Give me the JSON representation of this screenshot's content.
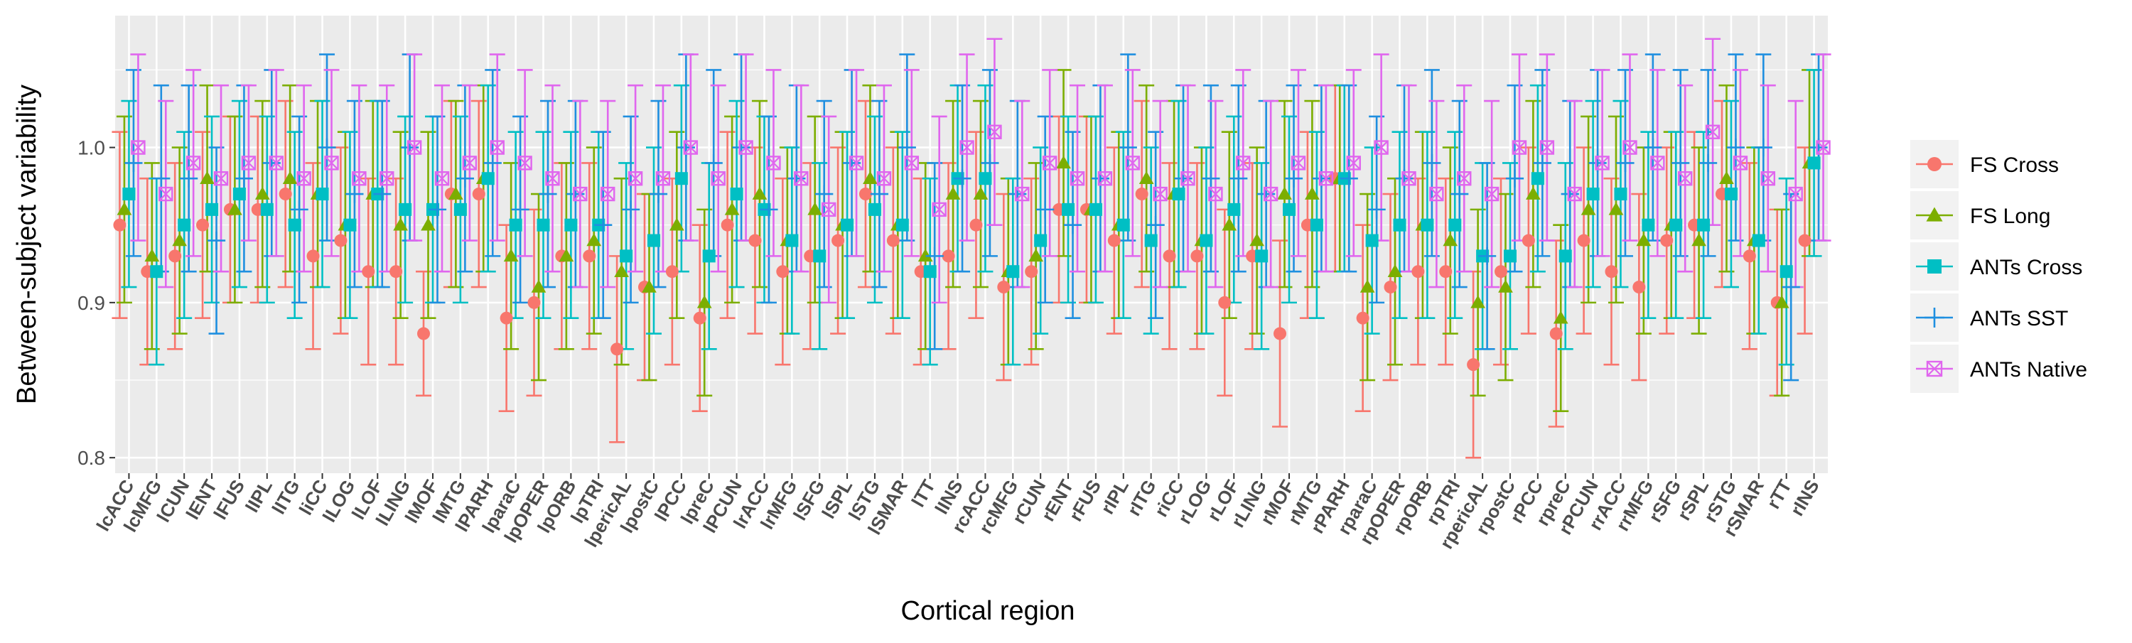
{
  "chart_data": {
    "type": "scatter",
    "xlabel": "Cortical region",
    "ylabel": "Between-subject variability",
    "ylim": [
      0.79,
      1.085
    ],
    "yticks": [
      0.8,
      0.9,
      1.0
    ],
    "ytick_labels": [
      "0.8",
      "0.9",
      "1.0"
    ],
    "grid": true,
    "legend_position": "right",
    "categories": [
      "lcACC",
      "lcMFG",
      "lCUN",
      "lENT",
      "lFUS",
      "lIPL",
      "lITG",
      "liCC",
      "lLOG",
      "lLOF",
      "lLING",
      "lMOF",
      "lMTG",
      "lPARH",
      "lparaC",
      "lpOPER",
      "lpORB",
      "lpTRI",
      "lpericAL",
      "lpostC",
      "lPCC",
      "lpreC",
      "lPCUN",
      "lrACC",
      "lrMFG",
      "lSFG",
      "lSPL",
      "lSTG",
      "lSMAR",
      "lTT",
      "lINS",
      "rcACC",
      "rcMFG",
      "rCUN",
      "rENT",
      "rFUS",
      "rIPL",
      "rITG",
      "riCC",
      "rLOG",
      "rLOF",
      "rLING",
      "rMOF",
      "rMTG",
      "rPARH",
      "rparaC",
      "rpOPER",
      "rpORB",
      "rpTRI",
      "rpericAL",
      "rpostC",
      "rPCC",
      "rpreC",
      "rPCUN",
      "rrACC",
      "rrMFG",
      "rSFG",
      "rSPL",
      "rSTG",
      "rSMAR",
      "rTT",
      "rINS"
    ],
    "series": [
      {
        "name": "FS Cross",
        "color": "#F8766D",
        "marker": "circle",
        "values": [
          0.95,
          0.92,
          0.93,
          0.95,
          0.96,
          0.96,
          0.97,
          0.93,
          0.94,
          0.92,
          0.92,
          0.88,
          0.97,
          0.97,
          0.89,
          0.9,
          0.93,
          0.93,
          0.87,
          0.91,
          0.92,
          0.89,
          0.95,
          0.94,
          0.92,
          0.93,
          0.94,
          0.97,
          0.94,
          0.92,
          0.93,
          0.95,
          0.91,
          0.92,
          0.96,
          0.96,
          0.94,
          0.97,
          0.93,
          0.93,
          0.9,
          0.93,
          0.88,
          0.95,
          0.98,
          0.89,
          0.91,
          0.92,
          0.92,
          0.86,
          0.92,
          0.94,
          0.88,
          0.94,
          0.92,
          0.91,
          0.94,
          0.95,
          0.97,
          0.93,
          0.9,
          0.94
        ],
        "err": [
          0.06,
          0.06,
          0.06,
          0.06,
          0.06,
          0.06,
          0.06,
          0.06,
          0.06,
          0.06,
          0.06,
          0.04,
          0.06,
          0.06,
          0.06,
          0.06,
          0.06,
          0.06,
          0.06,
          0.06,
          0.06,
          0.06,
          0.06,
          0.06,
          0.06,
          0.06,
          0.06,
          0.06,
          0.06,
          0.06,
          0.06,
          0.06,
          0.06,
          0.06,
          0.06,
          0.06,
          0.06,
          0.06,
          0.06,
          0.06,
          0.06,
          0.06,
          0.06,
          0.06,
          0.06,
          0.06,
          0.06,
          0.06,
          0.06,
          0.06,
          0.06,
          0.06,
          0.06,
          0.06,
          0.06,
          0.06,
          0.06,
          0.06,
          0.06,
          0.06,
          0.06,
          0.06
        ]
      },
      {
        "name": "FS Long",
        "color": "#7CAE00",
        "marker": "triangle",
        "values": [
          0.96,
          0.93,
          0.94,
          0.98,
          0.96,
          0.97,
          0.98,
          0.97,
          0.95,
          0.97,
          0.95,
          0.95,
          0.97,
          0.98,
          0.93,
          0.91,
          0.93,
          0.94,
          0.92,
          0.91,
          0.95,
          0.9,
          0.96,
          0.97,
          0.94,
          0.96,
          0.95,
          0.98,
          0.95,
          0.93,
          0.97,
          0.97,
          0.92,
          0.93,
          0.99,
          0.96,
          0.95,
          0.98,
          0.97,
          0.94,
          0.95,
          0.94,
          0.97,
          0.97,
          0.98,
          0.91,
          0.92,
          0.95,
          0.94,
          0.9,
          0.91,
          0.97,
          0.89,
          0.96,
          0.96,
          0.94,
          0.95,
          0.94,
          0.98,
          0.94,
          0.9,
          0.99
        ],
        "err": [
          0.06,
          0.06,
          0.06,
          0.06,
          0.06,
          0.06,
          0.06,
          0.06,
          0.06,
          0.06,
          0.06,
          0.06,
          0.06,
          0.06,
          0.06,
          0.06,
          0.06,
          0.06,
          0.06,
          0.06,
          0.06,
          0.06,
          0.06,
          0.06,
          0.06,
          0.06,
          0.06,
          0.06,
          0.06,
          0.06,
          0.06,
          0.06,
          0.06,
          0.06,
          0.06,
          0.06,
          0.06,
          0.06,
          0.06,
          0.06,
          0.06,
          0.06,
          0.06,
          0.06,
          0.06,
          0.06,
          0.06,
          0.06,
          0.06,
          0.06,
          0.06,
          0.06,
          0.06,
          0.06,
          0.06,
          0.06,
          0.06,
          0.06,
          0.06,
          0.06,
          0.06,
          0.06
        ]
      },
      {
        "name": "ANTs Cross",
        "color": "#00BFC4",
        "marker": "square",
        "values": [
          0.97,
          0.92,
          0.95,
          0.96,
          0.97,
          0.96,
          0.95,
          0.97,
          0.95,
          0.97,
          0.96,
          0.96,
          0.96,
          0.98,
          0.95,
          0.95,
          0.95,
          0.95,
          0.93,
          0.94,
          0.98,
          0.93,
          0.97,
          0.96,
          0.94,
          0.93,
          0.95,
          0.96,
          0.95,
          0.92,
          0.98,
          0.98,
          0.92,
          0.94,
          0.96,
          0.96,
          0.95,
          0.94,
          0.97,
          0.94,
          0.96,
          0.93,
          0.96,
          0.95,
          0.98,
          0.94,
          0.95,
          0.95,
          0.95,
          0.93,
          0.93,
          0.98,
          0.93,
          0.97,
          0.97,
          0.95,
          0.95,
          0.95,
          0.97,
          0.94,
          0.92,
          0.99
        ],
        "err": [
          0.06,
          0.06,
          0.06,
          0.06,
          0.06,
          0.06,
          0.06,
          0.06,
          0.06,
          0.06,
          0.06,
          0.06,
          0.06,
          0.06,
          0.06,
          0.06,
          0.06,
          0.06,
          0.06,
          0.06,
          0.06,
          0.06,
          0.06,
          0.06,
          0.06,
          0.06,
          0.06,
          0.06,
          0.06,
          0.06,
          0.06,
          0.06,
          0.06,
          0.06,
          0.06,
          0.06,
          0.06,
          0.06,
          0.06,
          0.06,
          0.06,
          0.06,
          0.06,
          0.06,
          0.06,
          0.06,
          0.06,
          0.06,
          0.06,
          0.06,
          0.06,
          0.06,
          0.06,
          0.06,
          0.06,
          0.06,
          0.06,
          0.06,
          0.06,
          0.06,
          0.06,
          0.06
        ]
      },
      {
        "name": "ANTs SST",
        "color": "#1F8FE0",
        "marker": "plus",
        "values": [
          0.99,
          0.98,
          0.98,
          0.94,
          0.98,
          0.99,
          0.96,
          1.0,
          0.97,
          0.97,
          1.0,
          0.96,
          0.98,
          0.99,
          0.96,
          0.97,
          0.97,
          0.95,
          0.96,
          0.97,
          1.0,
          0.99,
          1.0,
          0.96,
          0.98,
          0.97,
          0.99,
          0.97,
          1.0,
          0.93,
          0.98,
          0.99,
          0.97,
          0.96,
          0.95,
          0.98,
          1.0,
          0.95,
          0.98,
          0.98,
          0.98,
          0.97,
          0.98,
          0.98,
          0.98,
          0.96,
          0.98,
          0.99,
          0.97,
          0.93,
          0.98,
          0.99,
          0.97,
          0.99,
          0.99,
          1.0,
          0.99,
          0.99,
          1.0,
          1.0,
          0.91,
          1.0
        ],
        "err": [
          0.06,
          0.06,
          0.06,
          0.06,
          0.06,
          0.06,
          0.06,
          0.06,
          0.06,
          0.06,
          0.06,
          0.06,
          0.06,
          0.06,
          0.06,
          0.06,
          0.06,
          0.06,
          0.06,
          0.06,
          0.06,
          0.06,
          0.06,
          0.06,
          0.06,
          0.06,
          0.06,
          0.06,
          0.06,
          0.06,
          0.06,
          0.06,
          0.06,
          0.06,
          0.06,
          0.06,
          0.06,
          0.06,
          0.06,
          0.06,
          0.06,
          0.06,
          0.06,
          0.06,
          0.06,
          0.06,
          0.06,
          0.06,
          0.06,
          0.06,
          0.06,
          0.06,
          0.06,
          0.06,
          0.06,
          0.06,
          0.06,
          0.06,
          0.06,
          0.06,
          0.06,
          0.06
        ]
      },
      {
        "name": "ANTs Native",
        "color": "#E066EE",
        "marker": "boxx",
        "values": [
          1.0,
          0.97,
          0.99,
          0.98,
          0.99,
          0.99,
          0.98,
          0.99,
          0.98,
          0.98,
          1.0,
          0.98,
          0.99,
          1.0,
          0.99,
          0.98,
          0.97,
          0.97,
          0.98,
          0.98,
          1.0,
          0.98,
          1.0,
          0.99,
          0.98,
          0.96,
          0.99,
          0.98,
          0.99,
          0.96,
          1.0,
          1.01,
          0.97,
          0.99,
          0.98,
          0.98,
          0.99,
          0.97,
          0.98,
          0.97,
          0.99,
          0.97,
          0.99,
          0.98,
          0.99,
          1.0,
          0.98,
          0.97,
          0.98,
          0.97,
          1.0,
          1.0,
          0.97,
          0.99,
          1.0,
          0.99,
          0.98,
          1.01,
          0.99,
          0.98,
          0.97,
          1.0
        ],
        "err": [
          0.06,
          0.06,
          0.06,
          0.06,
          0.05,
          0.06,
          0.06,
          0.06,
          0.06,
          0.06,
          0.06,
          0.06,
          0.05,
          0.06,
          0.06,
          0.06,
          0.06,
          0.06,
          0.06,
          0.06,
          0.06,
          0.06,
          0.06,
          0.06,
          0.06,
          0.06,
          0.06,
          0.06,
          0.06,
          0.06,
          0.06,
          0.06,
          0.06,
          0.06,
          0.06,
          0.06,
          0.06,
          0.06,
          0.06,
          0.06,
          0.06,
          0.06,
          0.06,
          0.06,
          0.06,
          0.06,
          0.06,
          0.06,
          0.06,
          0.06,
          0.06,
          0.06,
          0.06,
          0.06,
          0.06,
          0.06,
          0.06,
          0.06,
          0.06,
          0.06,
          0.06,
          0.06
        ]
      }
    ]
  }
}
